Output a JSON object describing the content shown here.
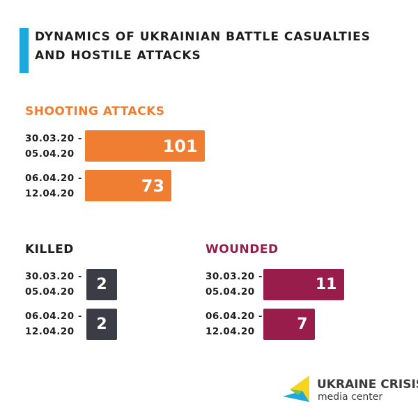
{
  "title": "Dynamics of Ukrainian battle casualties and hostile attacks",
  "colors": {
    "accent_bar": "#1ea8db",
    "shooting": "#ef7d32",
    "killed": "#3c3c46",
    "wounded": "#981d4a"
  },
  "chart_data": [
    {
      "type": "bar",
      "title": "Shooting attacks",
      "categories": [
        "30.03.20 -\n05.04.20",
        "06.04.20 -\n12.04.20"
      ],
      "values": [
        101,
        73
      ]
    },
    {
      "type": "bar",
      "title": "Killed",
      "categories": [
        "30.03.20 -\n05.04.20",
        "06.04.20 -\n12.04.20"
      ],
      "values": [
        2,
        2
      ]
    },
    {
      "type": "bar",
      "title": "Wounded",
      "categories": [
        "30.03.20 -\n05.04.20",
        "06.04.20 -\n12.04.20"
      ],
      "values": [
        11,
        7
      ]
    }
  ],
  "logo": {
    "line1": "UKRAINE CRISIS",
    "line2": "media center",
    "icon": "ukraine-crisis-logo-icon"
  }
}
